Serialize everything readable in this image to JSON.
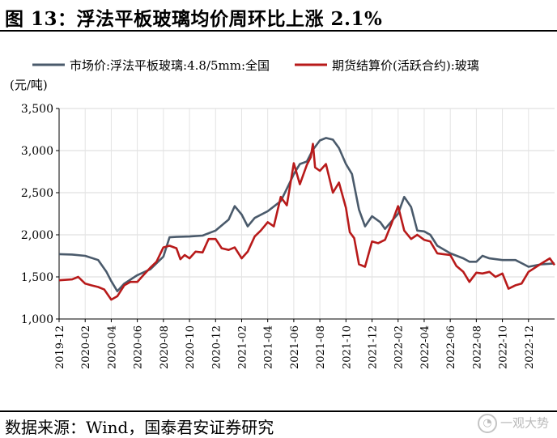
{
  "header": {
    "title": "图 13：浮法平板玻璃均价周环比上涨 2.1%"
  },
  "footer": {
    "source": "数据来源：Wind，国泰君安证券研究",
    "watermark": "一观大势",
    "watermark_icon": "wechat-icon"
  },
  "chart_data": {
    "type": "line",
    "ylabel": "(元/吨)",
    "xlabel": "",
    "ylim": [
      1000,
      3500
    ],
    "yticks": [
      1000,
      1500,
      2000,
      2500,
      3000,
      3500
    ],
    "ytick_labels": [
      "1,000",
      "1,500",
      "2,000",
      "2,500",
      "3,000",
      "3,500"
    ],
    "xlim": [
      "2019-12",
      "2023-02"
    ],
    "xtick_labels": [
      "2019-12",
      "2020-02",
      "2020-04",
      "2020-06",
      "2020-08",
      "2020-10",
      "2020-12",
      "2021-02",
      "2021-04",
      "2021-06",
      "2021-08",
      "2021-10",
      "2021-12",
      "2022-02",
      "2022-04",
      "2022-06",
      "2022-08",
      "2022-10",
      "2022-12"
    ],
    "grid": true,
    "legend_position": "top",
    "series": [
      {
        "name": "市场价:浮法平板玻璃:4.8/5mm:全国",
        "color": "#4a5a6b",
        "points": [
          [
            "2019-12",
            1770
          ],
          [
            "2020-01",
            1765
          ],
          [
            "2020-02",
            1750
          ],
          [
            "2020-03",
            1700
          ],
          [
            "2020-03-20",
            1560
          ],
          [
            "2020-04",
            1450
          ],
          [
            "2020-04-15",
            1330
          ],
          [
            "2020-05",
            1420
          ],
          [
            "2020-06",
            1520
          ],
          [
            "2020-07",
            1590
          ],
          [
            "2020-08",
            1740
          ],
          [
            "2020-08-15",
            1970
          ],
          [
            "2020-09",
            1975
          ],
          [
            "2020-10",
            1980
          ],
          [
            "2020-11",
            1990
          ],
          [
            "2020-12",
            2050
          ],
          [
            "2021-01",
            2180
          ],
          [
            "2021-01-15",
            2340
          ],
          [
            "2021-02",
            2240
          ],
          [
            "2021-02-15",
            2100
          ],
          [
            "2021-03",
            2200
          ],
          [
            "2021-04",
            2280
          ],
          [
            "2021-05",
            2400
          ],
          [
            "2021-05-20",
            2600
          ],
          [
            "2021-06",
            2720
          ],
          [
            "2021-06-15",
            2840
          ],
          [
            "2021-07",
            2870
          ],
          [
            "2021-07-15",
            3010
          ],
          [
            "2021-08",
            3120
          ],
          [
            "2021-08-15",
            3150
          ],
          [
            "2021-09",
            3130
          ],
          [
            "2021-09-15",
            3030
          ],
          [
            "2021-10",
            2840
          ],
          [
            "2021-10-15",
            2720
          ],
          [
            "2021-11",
            2300
          ],
          [
            "2021-11-15",
            2100
          ],
          [
            "2021-12",
            2220
          ],
          [
            "2021-12-20",
            2150
          ],
          [
            "2022-01",
            2070
          ],
          [
            "2022-02",
            2250
          ],
          [
            "2022-02-15",
            2450
          ],
          [
            "2022-03",
            2330
          ],
          [
            "2022-03-15",
            2050
          ],
          [
            "2022-04",
            2040
          ],
          [
            "2022-04-15",
            2000
          ],
          [
            "2022-05",
            1870
          ],
          [
            "2022-06",
            1780
          ],
          [
            "2022-07",
            1720
          ],
          [
            "2022-07-15",
            1680
          ],
          [
            "2022-08",
            1680
          ],
          [
            "2022-08-15",
            1750
          ],
          [
            "2022-09",
            1720
          ],
          [
            "2022-10",
            1700
          ],
          [
            "2022-11",
            1700
          ],
          [
            "2022-11-20",
            1650
          ],
          [
            "2022-12",
            1620
          ],
          [
            "2023-01",
            1650
          ],
          [
            "2023-02",
            1660
          ]
        ]
      },
      {
        "name": "期货结算价(活跃合约):玻璃",
        "color": "#b81a1a",
        "points": [
          [
            "2019-12",
            1460
          ],
          [
            "2020-01",
            1470
          ],
          [
            "2020-01-15",
            1500
          ],
          [
            "2020-02",
            1420
          ],
          [
            "2020-02-15",
            1400
          ],
          [
            "2020-03",
            1380
          ],
          [
            "2020-03-15",
            1350
          ],
          [
            "2020-04",
            1230
          ],
          [
            "2020-04-15",
            1270
          ],
          [
            "2020-05",
            1400
          ],
          [
            "2020-05-15",
            1440
          ],
          [
            "2020-06",
            1440
          ],
          [
            "2020-06-15",
            1520
          ],
          [
            "2020-07",
            1610
          ],
          [
            "2020-07-15",
            1680
          ],
          [
            "2020-08",
            1850
          ],
          [
            "2020-08-15",
            1870
          ],
          [
            "2020-09",
            1840
          ],
          [
            "2020-09-10",
            1710
          ],
          [
            "2020-09-20",
            1760
          ],
          [
            "2020-10",
            1720
          ],
          [
            "2020-10-15",
            1800
          ],
          [
            "2020-11",
            1790
          ],
          [
            "2020-11-15",
            1950
          ],
          [
            "2020-12",
            1950
          ],
          [
            "2020-12-15",
            1840
          ],
          [
            "2021-01",
            1820
          ],
          [
            "2021-01-15",
            1850
          ],
          [
            "2021-02",
            1720
          ],
          [
            "2021-02-15",
            1800
          ],
          [
            "2021-03",
            1980
          ],
          [
            "2021-03-15",
            2050
          ],
          [
            "2021-04",
            2150
          ],
          [
            "2021-04-15",
            2100
          ],
          [
            "2021-05",
            2450
          ],
          [
            "2021-05-15",
            2350
          ],
          [
            "2021-06",
            2850
          ],
          [
            "2021-06-15",
            2600
          ],
          [
            "2021-07",
            2830
          ],
          [
            "2021-07-10",
            2920
          ],
          [
            "2021-07-15",
            3080
          ],
          [
            "2021-07-20",
            2800
          ],
          [
            "2021-08",
            2760
          ],
          [
            "2021-08-15",
            2840
          ],
          [
            "2021-09",
            2500
          ],
          [
            "2021-09-15",
            2620
          ],
          [
            "2021-10",
            2320
          ],
          [
            "2021-10-10",
            2030
          ],
          [
            "2021-10-20",
            1960
          ],
          [
            "2021-11",
            1650
          ],
          [
            "2021-11-15",
            1620
          ],
          [
            "2021-12",
            1920
          ],
          [
            "2021-12-15",
            1900
          ],
          [
            "2022-01",
            1940
          ],
          [
            "2022-01-15",
            2120
          ],
          [
            "2022-02",
            2340
          ],
          [
            "2022-02-15",
            2050
          ],
          [
            "2022-03",
            1950
          ],
          [
            "2022-03-15",
            2000
          ],
          [
            "2022-04",
            1940
          ],
          [
            "2022-04-15",
            1920
          ],
          [
            "2022-05",
            1780
          ],
          [
            "2022-05-15",
            1770
          ],
          [
            "2022-06",
            1760
          ],
          [
            "2022-06-15",
            1630
          ],
          [
            "2022-07",
            1560
          ],
          [
            "2022-07-15",
            1440
          ],
          [
            "2022-08",
            1550
          ],
          [
            "2022-08-15",
            1540
          ],
          [
            "2022-09",
            1560
          ],
          [
            "2022-09-15",
            1500
          ],
          [
            "2022-10",
            1540
          ],
          [
            "2022-10-15",
            1360
          ],
          [
            "2022-11",
            1400
          ],
          [
            "2022-11-15",
            1420
          ],
          [
            "2022-12",
            1560
          ],
          [
            "2023-01",
            1660
          ],
          [
            "2023-01-20",
            1720
          ],
          [
            "2023-02",
            1640
          ]
        ]
      }
    ]
  }
}
